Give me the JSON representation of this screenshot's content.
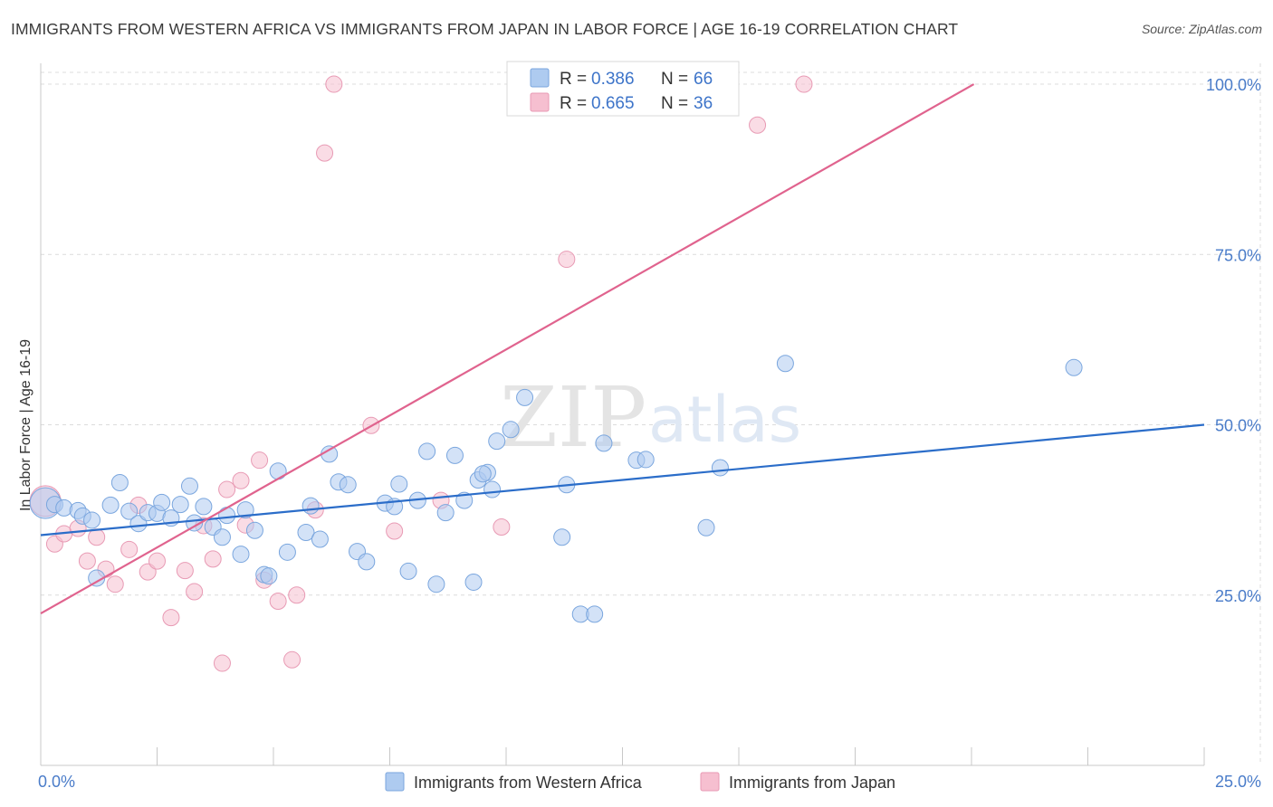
{
  "title": "IMMIGRANTS FROM WESTERN AFRICA VS IMMIGRANTS FROM JAPAN IN LABOR FORCE | AGE 16-19 CORRELATION CHART",
  "source": "Source: ZipAtlas.com",
  "watermark": {
    "zip": "ZIP",
    "atlas": "atlas"
  },
  "colors": {
    "blue_fill": "#aecbf0",
    "blue_stroke": "#7aa6de",
    "blue_line": "#2b6dc9",
    "pink_fill": "#f6bfd0",
    "pink_stroke": "#e89ab4",
    "pink_line": "#e0638e",
    "tick_label": "#4a7cc9",
    "grid": "#dcdcdc"
  },
  "legend": {
    "items": [
      {
        "r_label": "R = ",
        "r_value": "0.386",
        "n_label": "N = ",
        "n_value": "66",
        "color": "#aecbf0",
        "stroke": "#7aa6de"
      },
      {
        "r_label": "R = ",
        "r_value": "0.665",
        "n_label": "N = ",
        "n_value": "36",
        "color": "#f6bfd0",
        "stroke": "#e89ab4"
      }
    ]
  },
  "chart_data": {
    "type": "scatter",
    "title": "IMMIGRANTS FROM WESTERN AFRICA VS IMMIGRANTS FROM JAPAN IN LABOR FORCE | AGE 16-19 CORRELATION CHART",
    "xlabel": "",
    "ylabel": "In Labor Force | Age 16-19",
    "xlim": [
      0,
      25
    ],
    "ylim": [
      0,
      102
    ],
    "x_ticks": [
      {
        "value": 0,
        "label": "0.0%"
      },
      {
        "value": 25,
        "label": "25.0%"
      }
    ],
    "y_ticks": [
      {
        "value": 25,
        "label": "25.0%"
      },
      {
        "value": 50,
        "label": "50.0%"
      },
      {
        "value": 75,
        "label": "75.0%"
      },
      {
        "value": 100,
        "label": "100.0%"
      }
    ],
    "x_minor_ticks": [
      0,
      2.5,
      5,
      7.5,
      10,
      12.5,
      15,
      17.5,
      20,
      22.5,
      25
    ],
    "series": [
      {
        "name": "Immigrants from Western Africa",
        "color": "#aecbf0",
        "R": 0.386,
        "N": 66,
        "trend": {
          "x": [
            0,
            25
          ],
          "y": [
            33.8,
            50.0
          ]
        },
        "points": [
          {
            "x": 0.1,
            "y": 38.5,
            "big": true
          },
          {
            "x": 0.3,
            "y": 38.3
          },
          {
            "x": 0.5,
            "y": 37.8
          },
          {
            "x": 0.8,
            "y": 37.4
          },
          {
            "x": 0.9,
            "y": 36.6
          },
          {
            "x": 1.1,
            "y": 36.0
          },
          {
            "x": 1.2,
            "y": 27.5
          },
          {
            "x": 1.5,
            "y": 38.2
          },
          {
            "x": 1.7,
            "y": 41.5
          },
          {
            "x": 1.9,
            "y": 37.3
          },
          {
            "x": 2.1,
            "y": 35.5
          },
          {
            "x": 2.3,
            "y": 37.1
          },
          {
            "x": 2.5,
            "y": 37.0
          },
          {
            "x": 2.6,
            "y": 38.6
          },
          {
            "x": 2.8,
            "y": 36.3
          },
          {
            "x": 3.0,
            "y": 38.3
          },
          {
            "x": 3.2,
            "y": 41.0
          },
          {
            "x": 3.3,
            "y": 35.6
          },
          {
            "x": 3.5,
            "y": 38.0
          },
          {
            "x": 3.7,
            "y": 35.0
          },
          {
            "x": 3.9,
            "y": 33.5
          },
          {
            "x": 4.0,
            "y": 36.7
          },
          {
            "x": 4.3,
            "y": 31.0
          },
          {
            "x": 4.4,
            "y": 37.5
          },
          {
            "x": 4.6,
            "y": 34.5
          },
          {
            "x": 4.8,
            "y": 28.0
          },
          {
            "x": 4.9,
            "y": 27.8
          },
          {
            "x": 5.1,
            "y": 43.2
          },
          {
            "x": 5.3,
            "y": 31.3
          },
          {
            "x": 5.7,
            "y": 34.2
          },
          {
            "x": 5.8,
            "y": 38.1
          },
          {
            "x": 6.0,
            "y": 33.2
          },
          {
            "x": 6.2,
            "y": 45.7
          },
          {
            "x": 6.4,
            "y": 41.6
          },
          {
            "x": 6.6,
            "y": 41.2
          },
          {
            "x": 6.8,
            "y": 31.4
          },
          {
            "x": 7.0,
            "y": 29.9
          },
          {
            "x": 7.4,
            "y": 38.5
          },
          {
            "x": 7.6,
            "y": 38.0
          },
          {
            "x": 7.7,
            "y": 41.3
          },
          {
            "x": 7.9,
            "y": 28.5
          },
          {
            "x": 8.1,
            "y": 38.9
          },
          {
            "x": 8.3,
            "y": 46.1
          },
          {
            "x": 8.5,
            "y": 26.6
          },
          {
            "x": 8.7,
            "y": 37.1
          },
          {
            "x": 8.9,
            "y": 45.5
          },
          {
            "x": 9.1,
            "y": 38.9
          },
          {
            "x": 9.3,
            "y": 26.9
          },
          {
            "x": 9.4,
            "y": 41.9
          },
          {
            "x": 9.6,
            "y": 43.0
          },
          {
            "x": 9.5,
            "y": 42.8
          },
          {
            "x": 9.7,
            "y": 40.5
          },
          {
            "x": 9.8,
            "y": 47.6
          },
          {
            "x": 10.1,
            "y": 49.3
          },
          {
            "x": 10.4,
            "y": 54.0
          },
          {
            "x": 11.2,
            "y": 33.5
          },
          {
            "x": 11.3,
            "y": 41.2
          },
          {
            "x": 11.6,
            "y": 22.2
          },
          {
            "x": 11.9,
            "y": 22.2
          },
          {
            "x": 12.1,
            "y": 47.3
          },
          {
            "x": 12.8,
            "y": 44.8
          },
          {
            "x": 13.0,
            "y": 44.9
          },
          {
            "x": 14.3,
            "y": 34.9
          },
          {
            "x": 14.6,
            "y": 43.7
          },
          {
            "x": 16.0,
            "y": 59.0
          },
          {
            "x": 22.2,
            "y": 58.4
          }
        ]
      },
      {
        "name": "Immigrants from Japan",
        "color": "#f6bfd0",
        "R": 0.665,
        "N": 36,
        "trend": {
          "x": [
            0,
            20.05
          ],
          "y": [
            22.3,
            100.0
          ]
        },
        "points": [
          {
            "x": 0.1,
            "y": 38.8,
            "big": true
          },
          {
            "x": 0.3,
            "y": 32.5
          },
          {
            "x": 0.5,
            "y": 34.0
          },
          {
            "x": 0.8,
            "y": 34.8
          },
          {
            "x": 1.0,
            "y": 30.0
          },
          {
            "x": 1.2,
            "y": 33.5
          },
          {
            "x": 1.4,
            "y": 28.8
          },
          {
            "x": 1.6,
            "y": 26.6
          },
          {
            "x": 1.9,
            "y": 31.7
          },
          {
            "x": 2.1,
            "y": 38.2
          },
          {
            "x": 2.3,
            "y": 28.4
          },
          {
            "x": 2.5,
            "y": 30.0
          },
          {
            "x": 2.8,
            "y": 21.7
          },
          {
            "x": 3.1,
            "y": 28.6
          },
          {
            "x": 3.3,
            "y": 25.5
          },
          {
            "x": 3.5,
            "y": 35.2
          },
          {
            "x": 3.7,
            "y": 30.3
          },
          {
            "x": 3.9,
            "y": 15.0
          },
          {
            "x": 4.0,
            "y": 40.5
          },
          {
            "x": 4.3,
            "y": 41.8
          },
          {
            "x": 4.4,
            "y": 35.3
          },
          {
            "x": 4.7,
            "y": 44.8
          },
          {
            "x": 4.8,
            "y": 27.2
          },
          {
            "x": 5.1,
            "y": 24.1
          },
          {
            "x": 5.4,
            "y": 15.5
          },
          {
            "x": 5.5,
            "y": 25.0
          },
          {
            "x": 5.9,
            "y": 37.5
          },
          {
            "x": 6.1,
            "y": 89.9
          },
          {
            "x": 6.3,
            "y": 100.0
          },
          {
            "x": 7.1,
            "y": 49.9
          },
          {
            "x": 7.6,
            "y": 34.4
          },
          {
            "x": 8.6,
            "y": 38.9
          },
          {
            "x": 9.9,
            "y": 35.0
          },
          {
            "x": 11.3,
            "y": 74.3
          },
          {
            "x": 15.4,
            "y": 94.0
          },
          {
            "x": 16.4,
            "y": 100.0
          }
        ]
      }
    ],
    "legend_position": "top-center",
    "bottom_legend": [
      "Immigrants from Western Africa",
      "Immigrants from Japan"
    ]
  }
}
